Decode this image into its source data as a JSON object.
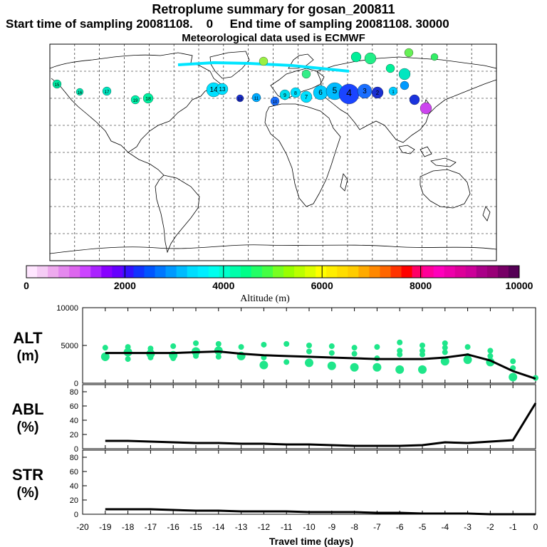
{
  "header": {
    "title": "Retroplume summary for gosan_200811",
    "start_label": "Start time of sampling 20081108.",
    "start_value": "0",
    "end_label": "End time of sampling 20081108. 30000",
    "met_label": "Meteorological data used is ECMWF"
  },
  "colors": {
    "plume_points": "#1fe68a",
    "mean_line": "#000000"
  },
  "colorbar": {
    "label": "Altitude (m)",
    "ticks": [
      "0",
      "2000",
      "4000",
      "6000",
      "8000",
      "10000"
    ],
    "range": [
      0,
      10000
    ],
    "colors": [
      "#ffe6ff",
      "#f5ccf5",
      "#eeaaee",
      "#e488ee",
      "#dd66ee",
      "#cc44ff",
      "#aa22ff",
      "#8800ff",
      "#6600ff",
      "#3311ff",
      "#1133ff",
      "#0055ff",
      "#0077ff",
      "#0099ff",
      "#00bbff",
      "#00ddff",
      "#00eeff",
      "#00ffee",
      "#00ffcc",
      "#00ffaa",
      "#00ff88",
      "#22ff66",
      "#44ff44",
      "#77ff22",
      "#99ff00",
      "#bbff00",
      "#ddff00",
      "#ffff00",
      "#ffee00",
      "#ffdd00",
      "#ffcc00",
      "#ffaa00",
      "#ff8800",
      "#ff6600",
      "#ff3300",
      "#ff0000",
      "#ff0066",
      "#ff0099",
      "#ff00bb",
      "#ee00aa",
      "#dd0099",
      "#cc0099",
      "#aa0088",
      "#990077",
      "#770066",
      "#550055"
    ]
  },
  "map_markers": {
    "labels": [
      "19",
      "18",
      "17",
      "16",
      "15",
      "14",
      "13",
      "12",
      "11",
      "10",
      "9",
      "8",
      "7",
      "6",
      "5",
      "4",
      "3",
      "2",
      "1"
    ]
  },
  "chart_data": [
    {
      "type": "line",
      "name": "ALT",
      "ylabel": "ALT",
      "yunit": "(m)",
      "ylim": [
        0,
        10000
      ],
      "yticks": [
        "10000",
        "5000",
        "0"
      ],
      "x": [
        -19,
        -18,
        -17,
        -16,
        -15,
        -14,
        -13,
        -12,
        -11,
        -10,
        -9,
        -8,
        -7,
        -6,
        -5,
        -4,
        -3,
        -2,
        -1,
        0
      ],
      "series": [
        {
          "name": "mean altitude",
          "values": [
            4000,
            4000,
            4000,
            4000,
            4100,
            4200,
            3900,
            3700,
            3600,
            3500,
            3400,
            3300,
            3200,
            3200,
            3200,
            3400,
            3800,
            3000,
            1600,
            600
          ]
        }
      ],
      "scatter": [
        [
          4700,
          3300,
          3500
        ],
        [
          4800,
          3200,
          4100
        ],
        [
          4600,
          3400,
          3900
        ],
        [
          4900,
          3300,
          3700
        ],
        [
          5300,
          3600,
          4200
        ],
        [
          5200,
          3500,
          4300
        ],
        [
          4800,
          3800,
          3600
        ],
        [
          5100,
          3400,
          2400
        ],
        [
          5200,
          2800
        ],
        [
          5000,
          4200,
          2700
        ],
        [
          4900,
          4000,
          2300
        ],
        [
          4700,
          3900,
          2100
        ],
        [
          4800,
          3300,
          2100
        ],
        [
          5400,
          4300,
          3800,
          1800
        ],
        [
          5000,
          4300,
          3800,
          1800
        ],
        [
          5300,
          4700,
          4100,
          2900
        ],
        [
          4800,
          3600,
          3100
        ],
        [
          4300,
          3600,
          2800
        ],
        [
          2900,
          2000,
          800
        ],
        [
          700
        ]
      ]
    },
    {
      "type": "line",
      "name": "ABL",
      "ylabel": "ABL",
      "yunit": "(%)",
      "ylim": [
        0,
        90
      ],
      "yticks": [
        "80",
        "60",
        "40",
        "20",
        "0"
      ],
      "x": [
        -19,
        -18,
        -17,
        -16,
        -15,
        -14,
        -13,
        -12,
        -11,
        -10,
        -9,
        -8,
        -7,
        -6,
        -5,
        -4,
        -3,
        -2,
        -1,
        0
      ],
      "series": [
        {
          "name": "ABL fraction",
          "values": [
            11,
            11,
            10,
            9,
            8,
            8,
            7,
            7,
            6,
            6,
            5,
            4,
            4,
            4,
            5,
            9,
            8,
            10,
            12,
            64
          ]
        }
      ]
    },
    {
      "type": "line",
      "name": "STR",
      "ylabel": "STR",
      "yunit": "(%)",
      "ylim": [
        0,
        90
      ],
      "yticks": [
        "80",
        "60",
        "40",
        "20",
        "0"
      ],
      "x": [
        -19,
        -18,
        -17,
        -16,
        -15,
        -14,
        -13,
        -12,
        -11,
        -10,
        -9,
        -8,
        -7,
        -6,
        -5,
        -4,
        -3,
        -2,
        -1,
        0
      ],
      "series": [
        {
          "name": "STR fraction",
          "values": [
            7,
            7,
            7,
            6,
            5,
            5,
            4,
            4,
            4,
            3,
            3,
            3,
            2,
            2,
            1,
            1,
            1,
            0,
            0,
            0
          ]
        }
      ]
    }
  ],
  "xaxis": {
    "label": "Travel time (days)",
    "ticks": [
      "-20",
      "-19",
      "-18",
      "-17",
      "-16",
      "-15",
      "-14",
      "-13",
      "-12",
      "-11",
      "-10",
      "-9",
      "-8",
      "-7",
      "-6",
      "-5",
      "-4",
      "-3",
      "-2",
      "-1",
      "0"
    ],
    "range": [
      -20,
      0
    ]
  }
}
